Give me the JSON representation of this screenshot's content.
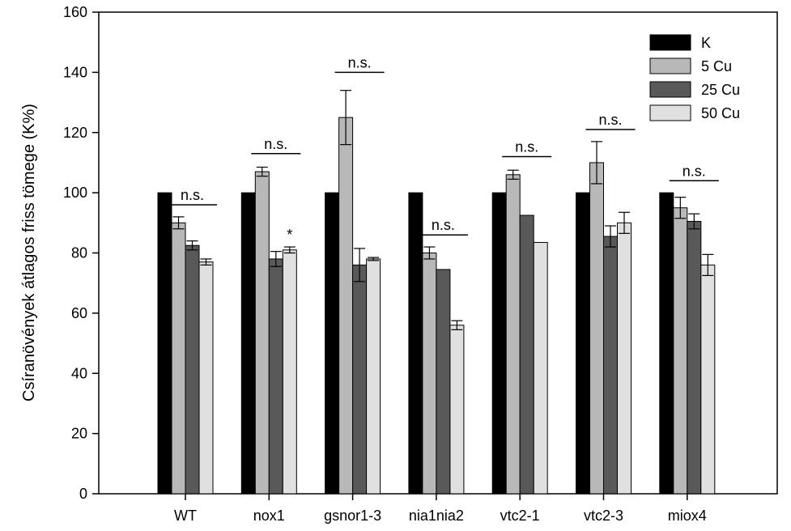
{
  "chart_data": {
    "type": "bar",
    "title": "",
    "xlabel": "",
    "ylabel": "Csíranövények átlagos friss tömege (K%)",
    "ylim": [
      0,
      160
    ],
    "yticks": [
      0,
      20,
      40,
      60,
      80,
      100,
      120,
      140,
      160
    ],
    "grid": false,
    "legend_position": "top-right",
    "categories": [
      "WT",
      "nox1",
      "gsnor1-3",
      "nia1nia2",
      "vtc2-1",
      "vtc2-3",
      "miox4"
    ],
    "series": [
      {
        "name": "K",
        "color": "#000000",
        "values": [
          100,
          100,
          100,
          100,
          100,
          100,
          100
        ],
        "errors": [
          0,
          0,
          0,
          0,
          0,
          0,
          0
        ]
      },
      {
        "name": "5 Cu",
        "color": "#b8b8b8",
        "values": [
          90,
          107,
          125,
          80,
          106,
          110,
          95
        ],
        "errors": [
          2,
          1.5,
          9,
          2,
          1.5,
          7,
          3.5
        ]
      },
      {
        "name": "25 Cu",
        "color": "#595959",
        "values": [
          82.5,
          78,
          76,
          74.5,
          92.5,
          85.5,
          90.5
        ],
        "errors": [
          1.5,
          2.5,
          5.5,
          0,
          0,
          3.5,
          2.5
        ]
      },
      {
        "name": "50 Cu",
        "color": "#e0e0e0",
        "values": [
          77,
          81,
          78,
          56,
          83.5,
          90,
          76
        ],
        "errors": [
          1,
          1,
          0.5,
          1.5,
          0,
          3.5,
          3.5
        ]
      }
    ],
    "annotations": [
      {
        "category": "WT",
        "text": "n.s.",
        "y": 96
      },
      {
        "category": "nox1",
        "text": "n.s.",
        "y": 113
      },
      {
        "category": "nox1",
        "text": "*",
        "y": 86,
        "series": "50 Cu"
      },
      {
        "category": "gsnor1-3",
        "text": "n.s.",
        "y": 140
      },
      {
        "category": "nia1nia2",
        "text": "n.s.",
        "y": 86
      },
      {
        "category": "vtc2-1",
        "text": "n.s.",
        "y": 112
      },
      {
        "category": "vtc2-3",
        "text": "n.s.",
        "y": 121
      },
      {
        "category": "miox4",
        "text": "n.s.",
        "y": 104
      }
    ]
  }
}
